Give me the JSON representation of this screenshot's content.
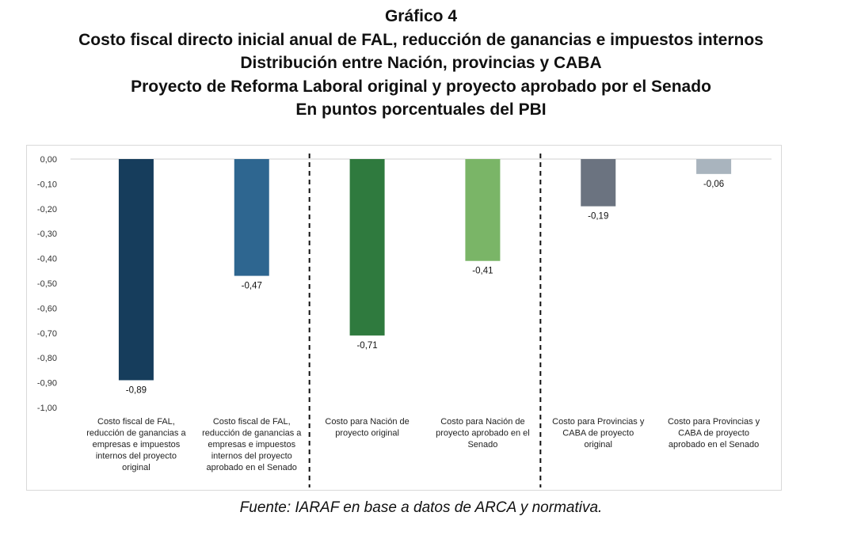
{
  "header": {
    "title": "Gráfico 4",
    "subtitle_lines": [
      "Costo fiscal directo inicial anual de FAL, reducción de ganancias e impuestos internos",
      "Distribución entre Nación, provincias y CABA",
      "Proyecto de Reforma Laboral original y proyecto aprobado por el Senado",
      "En puntos porcentuales del PBI"
    ]
  },
  "chart_data": {
    "type": "bar",
    "categories": [
      [
        "Costo fiscal de FAL,",
        "reducción de ganancias a",
        "empresas e impuestos",
        "internos del proyecto",
        "original"
      ],
      [
        "Costo fiscal de FAL,",
        "reducción de ganancias a",
        "empresas e impuestos",
        "internos del proyecto",
        "aprobado en el Senado"
      ],
      [
        "Costo para Nación de",
        "proyecto original"
      ],
      [
        "Costo para Nación de",
        "proyecto aprobado en el",
        "Senado"
      ],
      [
        "Costo para Provincias y",
        "CABA de proyecto",
        "original"
      ],
      [
        "Costo para Provincias y",
        "CABA de proyecto",
        "aprobado en el Senado"
      ]
    ],
    "values": [
      -0.89,
      -0.47,
      -0.71,
      -0.41,
      -0.19,
      -0.06
    ],
    "value_labels": [
      "-0,89",
      "-0,47",
      "-0,71",
      "-0,41",
      "-0,19",
      "-0,06"
    ],
    "bar_colors": [
      "#163d5c",
      "#2e6690",
      "#2f7a3e",
      "#7ab567",
      "#6b7380",
      "#a9b4be"
    ],
    "ylim": [
      -1.0,
      0.0
    ],
    "yticks": [
      0,
      -0.1,
      -0.2,
      -0.3,
      -0.4,
      -0.5,
      -0.6,
      -0.7,
      -0.8,
      -0.9,
      -1.0
    ],
    "ytick_labels": [
      "0,00",
      "-0,10",
      "-0,20",
      "-0,30",
      "-0,40",
      "-0,50",
      "-0,60",
      "-0,70",
      "-0,80",
      "-0,90",
      "-1,00"
    ],
    "separators_after_category": [
      2,
      4
    ],
    "xlabel": "",
    "ylabel": "",
    "grid": false,
    "legend": "none"
  },
  "source": "Fuente: IARAF en base a datos de ARCA y normativa."
}
